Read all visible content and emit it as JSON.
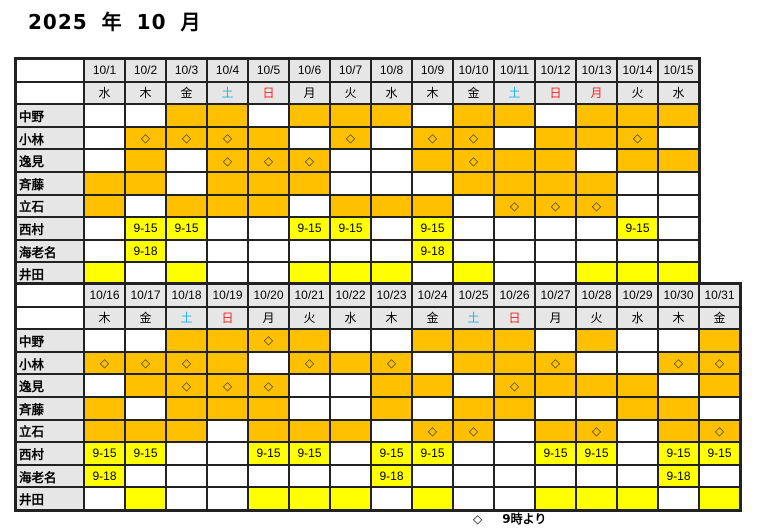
{
  "title": {
    "year": "2025",
    "year_unit": "年",
    "month": "10",
    "month_unit": "月"
  },
  "colors": {
    "orange": "#ffc000",
    "yellow": "#ffff00",
    "saturday": "#1fb4e8",
    "sunday": "#ff2020",
    "header_bg": "#e6e6e6"
  },
  "legend": {
    "symbol": "◇",
    "text": "9時より"
  },
  "cell_codes": {
    "w": "white/empty",
    "o": "orange",
    "d": "orange with ◇",
    "y": "yellow"
  },
  "weeks": [
    {
      "dates": [
        "10/1",
        "10/2",
        "10/3",
        "10/4",
        "10/5",
        "10/6",
        "10/7",
        "10/8",
        "10/9",
        "10/10",
        "10/11",
        "10/12",
        "10/13",
        "10/14",
        "10/15"
      ],
      "weekdays": [
        "水",
        "木",
        "金",
        "土",
        "日",
        "月",
        "火",
        "水",
        "木",
        "金",
        "土",
        "日",
        "月",
        "火",
        "水"
      ],
      "weekday_colors": [
        "",
        "",
        "",
        "sat",
        "sun",
        "",
        "",
        "",
        "",
        "",
        "sat",
        "sun",
        "sun",
        "",
        ""
      ],
      "rows": [
        {
          "name": "中野",
          "cells": [
            "w",
            "w",
            "o",
            "o",
            "w",
            "o",
            "o",
            "o",
            "w",
            "o",
            "o",
            "w",
            "o",
            "o",
            "o"
          ]
        },
        {
          "name": "小林",
          "cells": [
            "w",
            "d",
            "d",
            "d",
            "o",
            "w",
            "d",
            "w",
            "d",
            "d",
            "w",
            "o",
            "o",
            "d",
            "w"
          ]
        },
        {
          "name": "逸見",
          "cells": [
            "w",
            "o",
            "w",
            "d",
            "d",
            "d",
            "w",
            "w",
            "o",
            "d",
            "o",
            "o",
            "w",
            "o",
            "o"
          ]
        },
        {
          "name": "斉藤",
          "cells": [
            "o",
            "o",
            "w",
            "o",
            "o",
            "o",
            "w",
            "w",
            "w",
            "o",
            "o",
            "o",
            "o",
            "w",
            "w"
          ]
        },
        {
          "name": "立石",
          "cells": [
            "o",
            "w",
            "o",
            "o",
            "o",
            "w",
            "o",
            "o",
            "o",
            "w",
            "d",
            "d",
            "d",
            "w",
            "w"
          ]
        },
        {
          "name": "西村",
          "cells": [
            "w",
            "9-15",
            "9-15",
            "w",
            "w",
            "9-15",
            "9-15",
            "w",
            "9-15",
            "w",
            "w",
            "w",
            "w",
            "9-15",
            "w"
          ]
        },
        {
          "name": "海老名",
          "cells": [
            "w",
            "9-18",
            "w",
            "w",
            "w",
            "w",
            "w",
            "w",
            "9-18",
            "w",
            "w",
            "w",
            "w",
            "w",
            "w"
          ]
        },
        {
          "name": "井田",
          "cells": [
            "y",
            "w",
            "y",
            "w",
            "w",
            "y",
            "y",
            "y",
            "w",
            "y",
            "w",
            "w",
            "y",
            "y",
            "y"
          ]
        }
      ]
    },
    {
      "dates": [
        "10/16",
        "10/17",
        "10/18",
        "10/19",
        "10/20",
        "10/21",
        "10/22",
        "10/23",
        "10/24",
        "10/25",
        "10/26",
        "10/27",
        "10/28",
        "10/29",
        "10/30",
        "10/31"
      ],
      "weekdays": [
        "木",
        "金",
        "土",
        "日",
        "月",
        "火",
        "水",
        "木",
        "金",
        "土",
        "日",
        "月",
        "火",
        "水",
        "木",
        "金"
      ],
      "weekday_colors": [
        "",
        "",
        "sat",
        "sun",
        "",
        "",
        "",
        "",
        "",
        "sat",
        "sun",
        "",
        "",
        "",
        "",
        ""
      ],
      "rows": [
        {
          "name": "中野",
          "cells": [
            "w",
            "w",
            "o",
            "o",
            "d",
            "o",
            "w",
            "w",
            "o",
            "o",
            "o",
            "w",
            "o",
            "w",
            "w",
            "o"
          ]
        },
        {
          "name": "小林",
          "cells": [
            "d",
            "d",
            "d",
            "o",
            "w",
            "d",
            "o",
            "d",
            "w",
            "o",
            "o",
            "d",
            "w",
            "w",
            "d",
            "d"
          ]
        },
        {
          "name": "逸見",
          "cells": [
            "w",
            "o",
            "d",
            "d",
            "d",
            "w",
            "w",
            "o",
            "o",
            "w",
            "d",
            "o",
            "o",
            "o",
            "w",
            "o"
          ]
        },
        {
          "name": "斉藤",
          "cells": [
            "o",
            "w",
            "o",
            "o",
            "o",
            "w",
            "w",
            "o",
            "w",
            "o",
            "o",
            "w",
            "w",
            "o",
            "o",
            "w"
          ]
        },
        {
          "name": "立石",
          "cells": [
            "o",
            "o",
            "o",
            "w",
            "o",
            "o",
            "o",
            "w",
            "d",
            "d",
            "w",
            "o",
            "d",
            "w",
            "o",
            "d"
          ]
        },
        {
          "name": "西村",
          "cells": [
            "9-15",
            "9-15",
            "w",
            "w",
            "9-15",
            "9-15",
            "w",
            "9-15",
            "9-15",
            "w",
            "w",
            "9-15",
            "9-15",
            "w",
            "9-15",
            "9-15"
          ]
        },
        {
          "name": "海老名",
          "cells": [
            "9-18",
            "w",
            "w",
            "w",
            "w",
            "w",
            "w",
            "9-18",
            "w",
            "w",
            "w",
            "w",
            "w",
            "w",
            "9-18",
            "w"
          ]
        },
        {
          "name": "井田",
          "cells": [
            "w",
            "y",
            "w",
            "w",
            "y",
            "y",
            "y",
            "w",
            "y",
            "w",
            "w",
            "y",
            "y",
            "y",
            "w",
            "y"
          ]
        }
      ]
    }
  ]
}
